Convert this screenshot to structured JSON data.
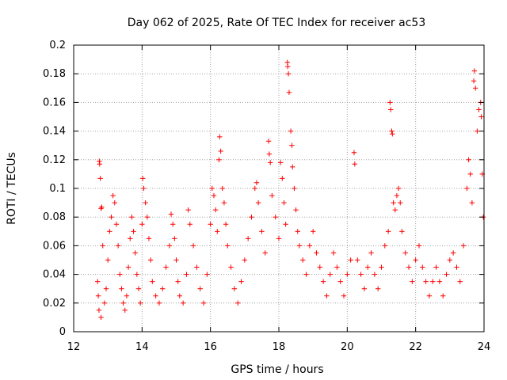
{
  "chart_data": {
    "type": "scatter",
    "title": "Day 062 of 2025, Rate Of TEC Index for receiver ac53",
    "xlabel": "GPS time / hours",
    "ylabel": "ROTI / TECUs",
    "xlim": [
      12,
      24
    ],
    "ylim": [
      0,
      0.2
    ],
    "xticks": [
      12,
      14,
      16,
      18,
      20,
      22,
      24
    ],
    "yticks": [
      0,
      0.02,
      0.04,
      0.06,
      0.08,
      0.1,
      0.12,
      0.14,
      0.16,
      0.18,
      0.2
    ],
    "xtick_labels": [
      "12",
      "14",
      "16",
      "18",
      "20",
      "22",
      "24"
    ],
    "ytick_labels": [
      "0",
      "0.02",
      "0.04",
      "0.06",
      "0.08",
      "0.1",
      "0.12",
      "0.14",
      "0.16",
      "0.18",
      "0.2"
    ],
    "grid": true,
    "marker": "+",
    "color": "#ff0000",
    "points": [
      [
        12.75,
        0.119
      ],
      [
        12.76,
        0.117
      ],
      [
        12.78,
        0.107
      ],
      [
        12.8,
        0.086
      ],
      [
        12.82,
        0.087
      ],
      [
        12.85,
        0.06
      ],
      [
        12.7,
        0.035
      ],
      [
        12.72,
        0.025
      ],
      [
        12.74,
        0.015
      ],
      [
        12.8,
        0.01
      ],
      [
        12.9,
        0.02
      ],
      [
        12.95,
        0.03
      ],
      [
        13.0,
        0.05
      ],
      [
        13.05,
        0.07
      ],
      [
        13.1,
        0.08
      ],
      [
        13.15,
        0.095
      ],
      [
        13.2,
        0.09
      ],
      [
        13.25,
        0.075
      ],
      [
        13.3,
        0.06
      ],
      [
        13.35,
        0.04
      ],
      [
        13.4,
        0.03
      ],
      [
        13.45,
        0.02
      ],
      [
        13.5,
        0.015
      ],
      [
        13.55,
        0.025
      ],
      [
        13.6,
        0.045
      ],
      [
        13.65,
        0.065
      ],
      [
        13.7,
        0.08
      ],
      [
        13.75,
        0.07
      ],
      [
        13.8,
        0.055
      ],
      [
        13.85,
        0.04
      ],
      [
        13.9,
        0.03
      ],
      [
        13.95,
        0.02
      ],
      [
        14.0,
        0.075
      ],
      [
        14.02,
        0.107
      ],
      [
        14.05,
        0.1
      ],
      [
        14.1,
        0.09
      ],
      [
        14.15,
        0.08
      ],
      [
        14.2,
        0.065
      ],
      [
        14.25,
        0.05
      ],
      [
        14.3,
        0.035
      ],
      [
        14.4,
        0.025
      ],
      [
        14.5,
        0.02
      ],
      [
        14.6,
        0.03
      ],
      [
        14.7,
        0.045
      ],
      [
        14.8,
        0.06
      ],
      [
        14.85,
        0.082
      ],
      [
        14.9,
        0.075
      ],
      [
        14.95,
        0.065
      ],
      [
        15.0,
        0.05
      ],
      [
        15.05,
        0.035
      ],
      [
        15.1,
        0.025
      ],
      [
        15.2,
        0.02
      ],
      [
        15.3,
        0.04
      ],
      [
        15.35,
        0.085
      ],
      [
        15.4,
        0.075
      ],
      [
        15.5,
        0.06
      ],
      [
        15.6,
        0.045
      ],
      [
        15.7,
        0.03
      ],
      [
        15.8,
        0.02
      ],
      [
        15.9,
        0.04
      ],
      [
        16.0,
        0.075
      ],
      [
        16.05,
        0.1
      ],
      [
        16.1,
        0.095
      ],
      [
        16.15,
        0.085
      ],
      [
        16.2,
        0.07
      ],
      [
        16.25,
        0.12
      ],
      [
        16.27,
        0.136
      ],
      [
        16.3,
        0.126
      ],
      [
        16.35,
        0.1
      ],
      [
        16.4,
        0.09
      ],
      [
        16.45,
        0.075
      ],
      [
        16.5,
        0.06
      ],
      [
        16.6,
        0.045
      ],
      [
        16.7,
        0.03
      ],
      [
        16.8,
        0.02
      ],
      [
        16.9,
        0.035
      ],
      [
        17.0,
        0.05
      ],
      [
        17.1,
        0.065
      ],
      [
        17.2,
        0.08
      ],
      [
        17.3,
        0.1
      ],
      [
        17.35,
        0.104
      ],
      [
        17.4,
        0.09
      ],
      [
        17.5,
        0.07
      ],
      [
        17.6,
        0.055
      ],
      [
        17.7,
        0.133
      ],
      [
        17.72,
        0.124
      ],
      [
        17.75,
        0.118
      ],
      [
        17.8,
        0.095
      ],
      [
        17.9,
        0.08
      ],
      [
        18.0,
        0.065
      ],
      [
        18.05,
        0.118
      ],
      [
        18.1,
        0.107
      ],
      [
        18.15,
        0.09
      ],
      [
        18.2,
        0.075
      ],
      [
        18.25,
        0.188
      ],
      [
        18.26,
        0.185
      ],
      [
        18.28,
        0.18
      ],
      [
        18.3,
        0.167
      ],
      [
        18.35,
        0.14
      ],
      [
        18.38,
        0.13
      ],
      [
        18.4,
        0.115
      ],
      [
        18.45,
        0.1
      ],
      [
        18.5,
        0.085
      ],
      [
        18.55,
        0.07
      ],
      [
        18.6,
        0.06
      ],
      [
        18.7,
        0.05
      ],
      [
        18.8,
        0.04
      ],
      [
        18.9,
        0.06
      ],
      [
        19.0,
        0.07
      ],
      [
        19.1,
        0.055
      ],
      [
        19.2,
        0.045
      ],
      [
        19.3,
        0.035
      ],
      [
        19.4,
        0.025
      ],
      [
        19.5,
        0.04
      ],
      [
        19.6,
        0.055
      ],
      [
        19.7,
        0.045
      ],
      [
        19.8,
        0.035
      ],
      [
        19.9,
        0.025
      ],
      [
        20.0,
        0.04
      ],
      [
        20.1,
        0.05
      ],
      [
        20.2,
        0.125
      ],
      [
        20.22,
        0.117
      ],
      [
        20.3,
        0.05
      ],
      [
        20.4,
        0.04
      ],
      [
        20.5,
        0.03
      ],
      [
        20.6,
        0.045
      ],
      [
        20.7,
        0.055
      ],
      [
        20.8,
        0.04
      ],
      [
        20.9,
        0.03
      ],
      [
        21.0,
        0.045
      ],
      [
        21.1,
        0.06
      ],
      [
        21.2,
        0.07
      ],
      [
        21.25,
        0.16
      ],
      [
        21.27,
        0.155
      ],
      [
        21.3,
        0.14
      ],
      [
        21.32,
        0.138
      ],
      [
        21.35,
        0.09
      ],
      [
        21.4,
        0.085
      ],
      [
        21.45,
        0.095
      ],
      [
        21.5,
        0.1
      ],
      [
        21.55,
        0.09
      ],
      [
        21.6,
        0.07
      ],
      [
        21.7,
        0.055
      ],
      [
        21.8,
        0.045
      ],
      [
        21.9,
        0.035
      ],
      [
        22.0,
        0.05
      ],
      [
        22.1,
        0.06
      ],
      [
        22.2,
        0.045
      ],
      [
        22.3,
        0.035
      ],
      [
        22.4,
        0.025
      ],
      [
        22.5,
        0.035
      ],
      [
        22.6,
        0.045
      ],
      [
        22.7,
        0.035
      ],
      [
        22.8,
        0.025
      ],
      [
        22.9,
        0.04
      ],
      [
        23.0,
        0.05
      ],
      [
        23.1,
        0.055
      ],
      [
        23.2,
        0.045
      ],
      [
        23.3,
        0.035
      ],
      [
        23.4,
        0.06
      ],
      [
        23.5,
        0.1
      ],
      [
        23.55,
        0.12
      ],
      [
        23.6,
        0.11
      ],
      [
        23.65,
        0.09
      ],
      [
        23.7,
        0.175
      ],
      [
        23.72,
        0.182
      ],
      [
        23.75,
        0.17
      ],
      [
        23.8,
        0.14
      ],
      [
        23.85,
        0.155
      ],
      [
        23.9,
        0.16
      ],
      [
        23.92,
        0.15
      ],
      [
        23.95,
        0.11
      ],
      [
        23.98,
        0.08
      ]
    ]
  }
}
